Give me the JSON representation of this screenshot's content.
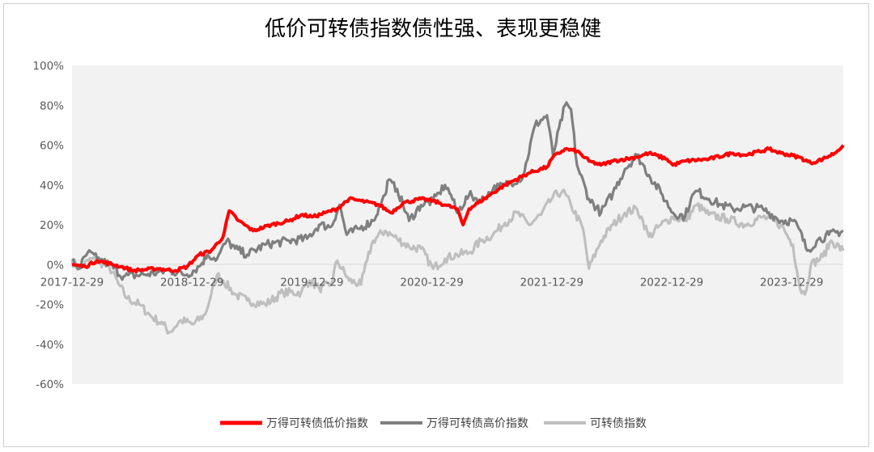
{
  "chart_data": {
    "type": "line",
    "title": "低价可转债指数债性强、表现更稳健",
    "xlabel": "",
    "ylabel": "",
    "x_tick_labels": [
      "2017-12-29",
      "2018-12-29",
      "2019-12-29",
      "2020-12-29",
      "2021-12-29",
      "2022-12-29",
      "2023-12-29"
    ],
    "y_tick_labels": [
      "100%",
      "80%",
      "60%",
      "40%",
      "20%",
      "0%",
      "-20%",
      "-40%",
      "-60%"
    ],
    "ylim": [
      -60,
      100
    ],
    "x_start_year": 2017.99,
    "x_end_year": 2024.42,
    "grid": false,
    "legend_position": "bottom",
    "series": [
      {
        "name": "万得可转债低价指数",
        "color": "#ff0000",
        "points": [
          [
            2017.99,
            0
          ],
          [
            2018.1,
            -1
          ],
          [
            2018.2,
            2
          ],
          [
            2018.4,
            -1
          ],
          [
            2018.5,
            -3
          ],
          [
            2018.7,
            -2
          ],
          [
            2018.85,
            -3
          ],
          [
            2018.95,
            -1
          ],
          [
            2019.05,
            5
          ],
          [
            2019.15,
            7
          ],
          [
            2019.25,
            14
          ],
          [
            2019.3,
            27
          ],
          [
            2019.38,
            22
          ],
          [
            2019.5,
            17
          ],
          [
            2019.65,
            20
          ],
          [
            2019.8,
            22
          ],
          [
            2019.9,
            25
          ],
          [
            2020.0,
            24
          ],
          [
            2020.1,
            26
          ],
          [
            2020.2,
            28
          ],
          [
            2020.3,
            33
          ],
          [
            2020.4,
            32
          ],
          [
            2020.55,
            30
          ],
          [
            2020.65,
            26
          ],
          [
            2020.75,
            31
          ],
          [
            2020.9,
            33
          ],
          [
            2021.0,
            32
          ],
          [
            2021.1,
            30
          ],
          [
            2021.2,
            28
          ],
          [
            2021.25,
            20
          ],
          [
            2021.3,
            28
          ],
          [
            2021.45,
            34
          ],
          [
            2021.6,
            40
          ],
          [
            2021.8,
            46
          ],
          [
            2021.95,
            49
          ],
          [
            2022.0,
            54
          ],
          [
            2022.1,
            58
          ],
          [
            2022.2,
            57
          ],
          [
            2022.3,
            52
          ],
          [
            2022.4,
            50
          ],
          [
            2022.5,
            52
          ],
          [
            2022.7,
            54
          ],
          [
            2022.8,
            56
          ],
          [
            2022.95,
            53
          ],
          [
            2023.0,
            50
          ],
          [
            2023.1,
            52
          ],
          [
            2023.3,
            53
          ],
          [
            2023.5,
            56
          ],
          [
            2023.6,
            55
          ],
          [
            2023.8,
            58
          ],
          [
            2023.9,
            56
          ],
          [
            2024.05,
            54
          ],
          [
            2024.15,
            51
          ],
          [
            2024.25,
            53
          ],
          [
            2024.35,
            56
          ],
          [
            2024.42,
            60
          ]
        ]
      },
      {
        "name": "万得可转债高价指数",
        "color": "#7f7f7f",
        "points": [
          [
            2017.99,
            2
          ],
          [
            2018.05,
            -2
          ],
          [
            2018.12,
            6
          ],
          [
            2018.2,
            3
          ],
          [
            2018.3,
            0
          ],
          [
            2018.42,
            -6
          ],
          [
            2018.6,
            -5
          ],
          [
            2018.8,
            -3
          ],
          [
            2018.95,
            -5
          ],
          [
            2019.05,
            -1
          ],
          [
            2019.12,
            5
          ],
          [
            2019.2,
            3
          ],
          [
            2019.28,
            12
          ],
          [
            2019.35,
            8
          ],
          [
            2019.45,
            5
          ],
          [
            2019.6,
            10
          ],
          [
            2019.8,
            12
          ],
          [
            2019.95,
            13
          ],
          [
            2020.05,
            20
          ],
          [
            2020.15,
            19
          ],
          [
            2020.22,
            30
          ],
          [
            2020.28,
            15
          ],
          [
            2020.38,
            18
          ],
          [
            2020.5,
            22
          ],
          [
            2020.6,
            35
          ],
          [
            2020.62,
            42
          ],
          [
            2020.7,
            38
          ],
          [
            2020.8,
            22
          ],
          [
            2020.9,
            30
          ],
          [
            2021.0,
            32
          ],
          [
            2021.05,
            36
          ],
          [
            2021.1,
            40
          ],
          [
            2021.15,
            35
          ],
          [
            2021.2,
            26
          ],
          [
            2021.3,
            35
          ],
          [
            2021.4,
            32
          ],
          [
            2021.5,
            38
          ],
          [
            2021.6,
            40
          ],
          [
            2021.75,
            44
          ],
          [
            2021.85,
            70
          ],
          [
            2021.95,
            75
          ],
          [
            2022.0,
            55
          ],
          [
            2022.1,
            80
          ],
          [
            2022.15,
            78
          ],
          [
            2022.2,
            50
          ],
          [
            2022.3,
            33
          ],
          [
            2022.4,
            26
          ],
          [
            2022.5,
            36
          ],
          [
            2022.6,
            48
          ],
          [
            2022.7,
            55
          ],
          [
            2022.8,
            45
          ],
          [
            2022.9,
            36
          ],
          [
            2023.0,
            26
          ],
          [
            2023.1,
            24
          ],
          [
            2023.15,
            33
          ],
          [
            2023.2,
            37
          ],
          [
            2023.3,
            33
          ],
          [
            2023.4,
            30
          ],
          [
            2023.5,
            28
          ],
          [
            2023.6,
            29
          ],
          [
            2023.75,
            28
          ],
          [
            2023.9,
            22
          ],
          [
            2024.0,
            22
          ],
          [
            2024.05,
            18
          ],
          [
            2024.12,
            7
          ],
          [
            2024.2,
            12
          ],
          [
            2024.3,
            15
          ],
          [
            2024.42,
            17
          ]
        ]
      },
      {
        "name": "可转债指数",
        "color": "#bfbfbf",
        "points": [
          [
            2017.99,
            2
          ],
          [
            2018.05,
            -2
          ],
          [
            2018.15,
            3
          ],
          [
            2018.3,
            -1
          ],
          [
            2018.38,
            -10
          ],
          [
            2018.45,
            -17
          ],
          [
            2018.55,
            -20
          ],
          [
            2018.65,
            -26
          ],
          [
            2018.75,
            -30
          ],
          [
            2018.8,
            -34
          ],
          [
            2018.9,
            -28
          ],
          [
            2019.0,
            -30
          ],
          [
            2019.1,
            -25
          ],
          [
            2019.15,
            -15
          ],
          [
            2019.2,
            -5
          ],
          [
            2019.25,
            -8
          ],
          [
            2019.35,
            -15
          ],
          [
            2019.45,
            -18
          ],
          [
            2019.6,
            -20
          ],
          [
            2019.75,
            -14
          ],
          [
            2019.9,
            -14
          ],
          [
            2019.97,
            -8
          ],
          [
            2020.05,
            -12
          ],
          [
            2020.15,
            -10
          ],
          [
            2020.2,
            2
          ],
          [
            2020.3,
            -8
          ],
          [
            2020.4,
            -10
          ],
          [
            2020.45,
            2
          ],
          [
            2020.5,
            12
          ],
          [
            2020.6,
            17
          ],
          [
            2020.7,
            13
          ],
          [
            2020.8,
            9
          ],
          [
            2020.9,
            8
          ],
          [
            2021.0,
            -2
          ],
          [
            2021.1,
            3
          ],
          [
            2021.2,
            5
          ],
          [
            2021.3,
            6
          ],
          [
            2021.4,
            12
          ],
          [
            2021.5,
            15
          ],
          [
            2021.6,
            21
          ],
          [
            2021.7,
            26
          ],
          [
            2021.8,
            20
          ],
          [
            2021.9,
            25
          ],
          [
            2022.0,
            34
          ],
          [
            2022.08,
            37
          ],
          [
            2022.15,
            30
          ],
          [
            2022.25,
            18
          ],
          [
            2022.3,
            -2
          ],
          [
            2022.4,
            12
          ],
          [
            2022.5,
            20
          ],
          [
            2022.6,
            26
          ],
          [
            2022.7,
            28
          ],
          [
            2022.75,
            22
          ],
          [
            2022.8,
            14
          ],
          [
            2022.9,
            20
          ],
          [
            2023.0,
            24
          ],
          [
            2023.1,
            22
          ],
          [
            2023.2,
            30
          ],
          [
            2023.3,
            25
          ],
          [
            2023.45,
            23
          ],
          [
            2023.6,
            20
          ],
          [
            2023.75,
            24
          ],
          [
            2023.9,
            20
          ],
          [
            2024.0,
            10
          ],
          [
            2024.06,
            -12
          ],
          [
            2024.1,
            -15
          ],
          [
            2024.15,
            0
          ],
          [
            2024.25,
            4
          ],
          [
            2024.32,
            12
          ],
          [
            2024.42,
            7
          ]
        ]
      }
    ]
  }
}
